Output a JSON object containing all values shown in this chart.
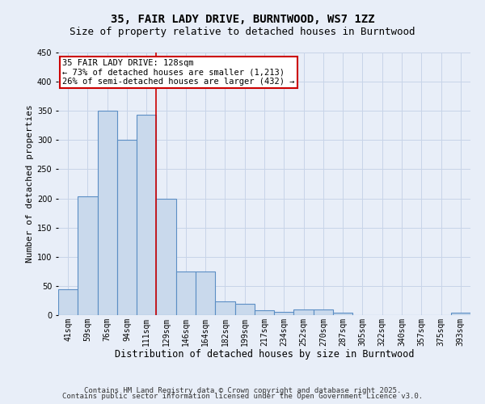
{
  "title_line1": "35, FAIR LADY DRIVE, BURNTWOOD, WS7 1ZZ",
  "title_line2": "Size of property relative to detached houses in Burntwood",
  "xlabel": "Distribution of detached houses by size in Burntwood",
  "ylabel": "Number of detached properties",
  "categories": [
    "41sqm",
    "59sqm",
    "76sqm",
    "94sqm",
    "111sqm",
    "129sqm",
    "146sqm",
    "164sqm",
    "182sqm",
    "199sqm",
    "217sqm",
    "234sqm",
    "252sqm",
    "270sqm",
    "287sqm",
    "305sqm",
    "322sqm",
    "340sqm",
    "357sqm",
    "375sqm",
    "393sqm"
  ],
  "values": [
    45,
    204,
    350,
    300,
    343,
    200,
    75,
    75,
    23,
    20,
    9,
    6,
    10,
    10,
    4,
    0,
    0,
    0,
    0,
    0,
    4
  ],
  "bar_facecolor": "#c9d9ec",
  "bar_edgecolor": "#5b8ec4",
  "bar_linewidth": 0.8,
  "grid_color": "#c8d4e8",
  "background_color": "#e8eef8",
  "ylim": [
    0,
    450
  ],
  "yticks": [
    0,
    50,
    100,
    150,
    200,
    250,
    300,
    350,
    400,
    450
  ],
  "vline_color": "#cc0000",
  "vline_bin_index": 5,
  "annotation_text": "35 FAIR LADY DRIVE: 128sqm\n← 73% of detached houses are smaller (1,213)\n26% of semi-detached houses are larger (432) →",
  "annotation_box_edgecolor": "#cc0000",
  "annotation_box_facecolor": "#ffffff",
  "footer1": "Contains HM Land Registry data © Crown copyright and database right 2025.",
  "footer2": "Contains public sector information licensed under the Open Government Licence v3.0.",
  "title_fontsize": 10,
  "subtitle_fontsize": 9,
  "xlabel_fontsize": 8.5,
  "ylabel_fontsize": 8,
  "tick_fontsize": 7,
  "annotation_fontsize": 7.5,
  "footer_fontsize": 6.5
}
